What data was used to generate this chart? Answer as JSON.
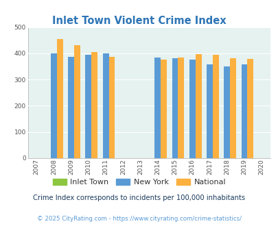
{
  "title": "Inlet Town Violent Crime Index",
  "all_years": [
    2007,
    2008,
    2009,
    2010,
    2011,
    2012,
    2013,
    2014,
    2015,
    2016,
    2017,
    2018,
    2019,
    2020
  ],
  "data_years": [
    2008,
    2009,
    2010,
    2011,
    2014,
    2015,
    2016,
    2017,
    2018,
    2019
  ],
  "inlet_town": [
    0,
    0,
    0,
    0,
    0,
    0,
    0,
    0,
    0,
    0
  ],
  "new_york": [
    400,
    387,
    395,
    400,
    383,
    381,
    377,
    358,
    351,
    357
  ],
  "national": [
    454,
    430,
    404,
    387,
    376,
    383,
    397,
    394,
    381,
    380
  ],
  "ylim": [
    0,
    500
  ],
  "yticks": [
    0,
    100,
    200,
    300,
    400,
    500
  ],
  "color_inlet": "#8dc63f",
  "color_ny": "#5b9bd5",
  "color_national": "#fbb040",
  "bg_color": "#e5f2f0",
  "bar_width": 0.35,
  "legend_labels": [
    "Inlet Town",
    "New York",
    "National"
  ],
  "footnote1": "Crime Index corresponds to incidents per 100,000 inhabitants",
  "footnote2": "© 2025 CityRating.com - https://www.cityrating.com/crime-statistics/",
  "title_color": "#2e75b6",
  "footnote1_color": "#1a3a5c",
  "footnote2_color": "#5b9bd5"
}
